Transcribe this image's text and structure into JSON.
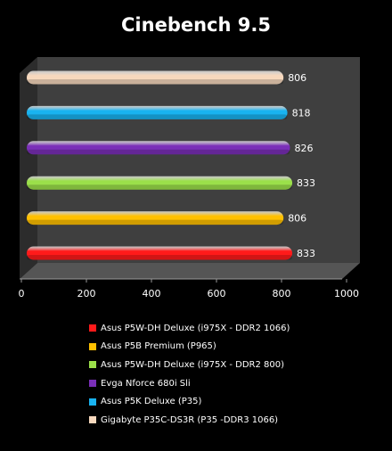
{
  "chart_data": {
    "type": "bar",
    "orientation": "horizontal",
    "title": "Cinebench 9.5",
    "xlim": [
      0,
      1000
    ],
    "x_ticks": [
      0,
      200,
      400,
      600,
      800,
      1000
    ],
    "grid": false,
    "legend_position": "bottom",
    "series": [
      {
        "name": "Asus P5W-DH Deluxe (i975X - DDR2 1066)",
        "value": 833,
        "color": "#ff1a1a"
      },
      {
        "name": "Asus P5B Premium (P965)",
        "value": 806,
        "color": "#ffc000"
      },
      {
        "name": "Asus P5W-DH Deluxe (i975X - DDR2 800)",
        "value": 833,
        "color": "#9be04a"
      },
      {
        "name": "Evga Nforce 680i Sli",
        "value": 826,
        "color": "#7a2fb8"
      },
      {
        "name": "Asus P5K Deluxe (P35)",
        "value": 818,
        "color": "#19b3f0"
      },
      {
        "name": "Gigabyte P35C-DS3R (P35 -DDR3 1066)",
        "value": 806,
        "color": "#f7d8bd"
      }
    ]
  }
}
